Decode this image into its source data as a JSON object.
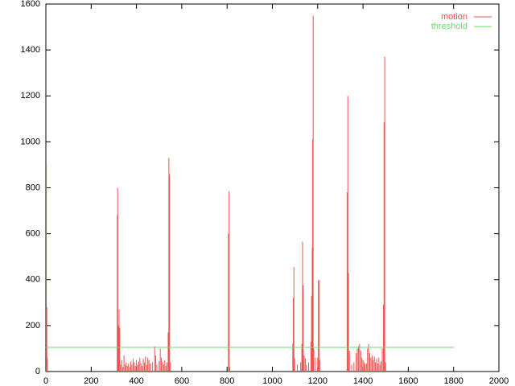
{
  "chart_data": {
    "type": "impulses",
    "xlim": [
      0,
      2000
    ],
    "xticks": [
      0,
      200,
      400,
      600,
      800,
      1000,
      1200,
      1400,
      1600,
      1800,
      2000
    ],
    "ylim": [
      0,
      1600
    ],
    "yticks": [
      0,
      200,
      400,
      600,
      800,
      1000,
      1200,
      1400,
      1600
    ],
    "legend": "top-right",
    "series": [
      {
        "name": "motion",
        "color": "#f05050",
        "style": "impulses",
        "x": [
          2,
          4,
          6,
          315,
          317,
          320,
          323,
          326,
          330,
          335,
          340,
          345,
          350,
          355,
          360,
          365,
          370,
          375,
          380,
          385,
          390,
          395,
          400,
          405,
          410,
          415,
          420,
          425,
          430,
          435,
          440,
          445,
          450,
          455,
          460,
          470,
          480,
          485,
          490,
          500,
          505,
          510,
          515,
          520,
          525,
          530,
          535,
          540,
          543,
          546,
          550,
          806,
          809,
          812,
          1090,
          1092,
          1095,
          1098,
          1110,
          1125,
          1130,
          1133,
          1136,
          1140,
          1145,
          1150,
          1160,
          1170,
          1173,
          1176,
          1178,
          1180,
          1183,
          1190,
          1200,
          1203,
          1207,
          1210,
          1330,
          1333,
          1336,
          1340,
          1350,
          1360,
          1370,
          1375,
          1380,
          1385,
          1390,
          1395,
          1400,
          1405,
          1410,
          1415,
          1420,
          1425,
          1430,
          1435,
          1440,
          1445,
          1450,
          1455,
          1460,
          1465,
          1470,
          1475,
          1480,
          1485,
          1490,
          1493,
          1496,
          1500
        ],
        "values": [
          900,
          280,
          60,
          680,
          800,
          200,
          270,
          190,
          30,
          50,
          20,
          70,
          30,
          40,
          25,
          35,
          20,
          45,
          30,
          55,
          40,
          25,
          50,
          30,
          45,
          60,
          35,
          25,
          55,
          40,
          65,
          30,
          60,
          50,
          35,
          40,
          110,
          70,
          30,
          45,
          100,
          60,
          40,
          30,
          50,
          25,
          40,
          170,
          930,
          860,
          40,
          600,
          785,
          20,
          120,
          320,
          455,
          60,
          30,
          40,
          120,
          565,
          375,
          70,
          60,
          30,
          40,
          130,
          330,
          540,
          1010,
          1550,
          100,
          60,
          60,
          395,
          400,
          50,
          780,
          1200,
          430,
          90,
          30,
          40,
          80,
          100,
          110,
          120,
          90,
          60,
          50,
          40,
          30,
          35,
          100,
          120,
          80,
          60,
          70,
          50,
          65,
          40,
          55,
          35,
          60,
          30,
          45,
          100,
          290,
          1085,
          1370,
          40
        ]
      },
      {
        "name": "threshold",
        "color": "#66dd66",
        "style": "line",
        "x": [
          0,
          1800
        ],
        "values": [
          105,
          105
        ]
      }
    ]
  }
}
